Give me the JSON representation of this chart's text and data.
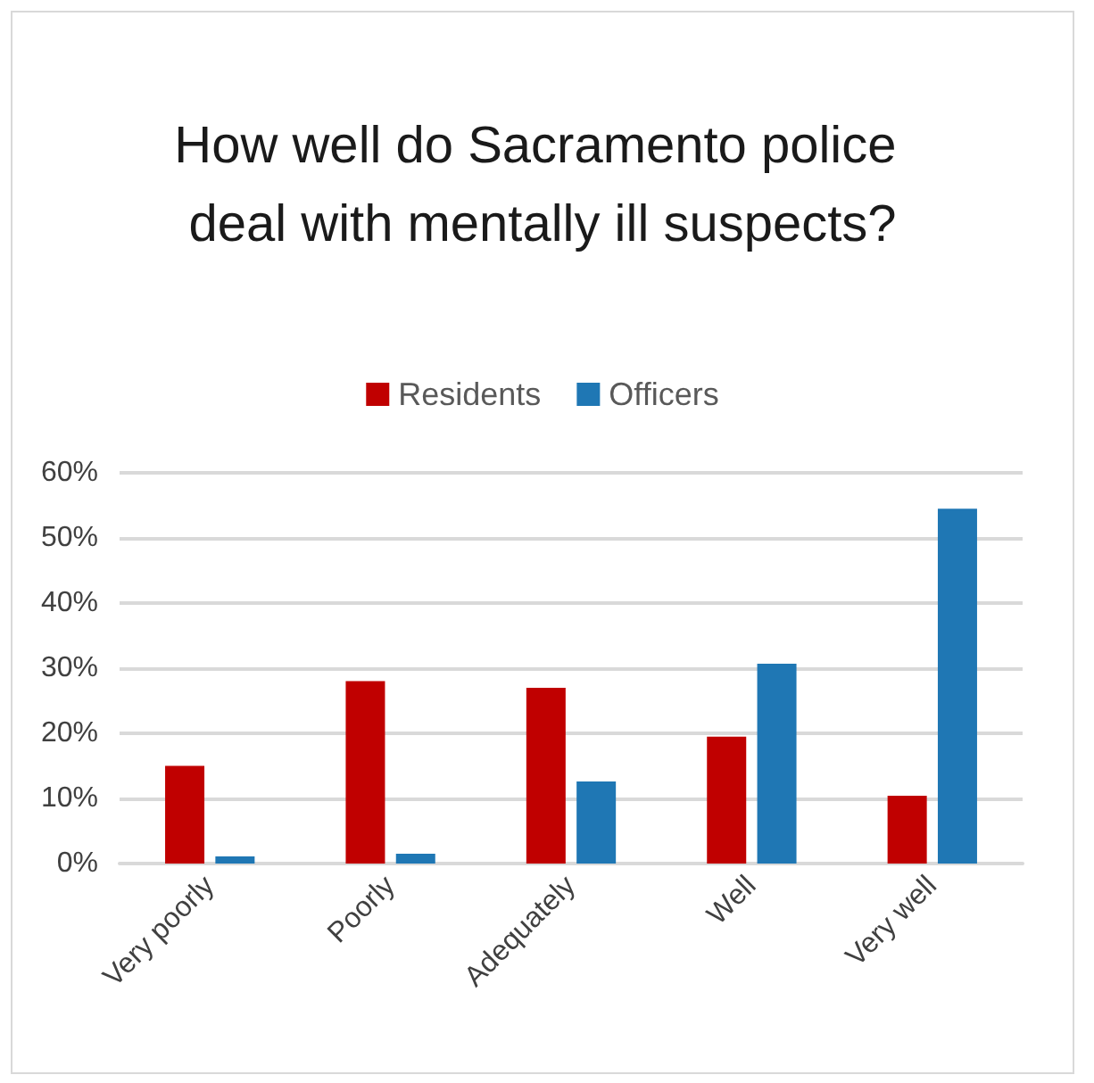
{
  "chart_data": {
    "type": "bar",
    "title": "How well do Sacramento police deal with mentally ill suspects?",
    "categories": [
      "Very poorly",
      "Poorly",
      "Adequately",
      "Well",
      "Very well"
    ],
    "series": [
      {
        "name": "Residents",
        "color": "#c00000",
        "values": [
          15,
          28,
          27,
          19.5,
          10.4
        ]
      },
      {
        "name": "Officers",
        "color": "#1f77b4",
        "values": [
          1.1,
          1.5,
          12.6,
          30.7,
          54.5
        ]
      }
    ],
    "ylim": [
      0,
      60
    ],
    "yticks": [
      {
        "value": 0,
        "label": "0%"
      },
      {
        "value": 10,
        "label": "10%"
      },
      {
        "value": 20,
        "label": "20%"
      },
      {
        "value": 30,
        "label": "30%"
      },
      {
        "value": 40,
        "label": "40%"
      },
      {
        "value": 50,
        "label": "50%"
      },
      {
        "value": 60,
        "label": "60%"
      }
    ],
    "grid": "y",
    "legend": "top"
  }
}
